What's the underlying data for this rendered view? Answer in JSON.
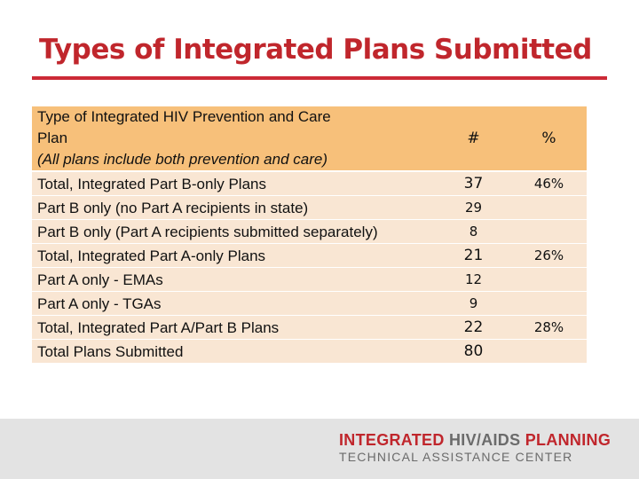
{
  "title": "Types of Integrated Plans Submitted",
  "table": {
    "header": {
      "type_line1": "Type of Integrated HIV Prevention and Care",
      "type_line2": "Plan",
      "type_line3": "(All plans include both prevention and care)",
      "count": "#",
      "percent": "%"
    },
    "rows": [
      {
        "label": "Total, Integrated Part B-only Plans",
        "count": "37",
        "percent": "46%"
      },
      {
        "label": "Part B only (no Part A recipients in state)",
        "count": "29",
        "percent": ""
      },
      {
        "label": "Part B only (Part A recipients submitted separately)",
        "count": "8",
        "percent": ""
      },
      {
        "label": "Total, Integrated Part A-only Plans",
        "count": "21",
        "percent": "26%"
      },
      {
        "label": "Part A only - EMAs",
        "count": "12",
        "percent": ""
      },
      {
        "label": "Part A only - TGAs",
        "count": "9",
        "percent": ""
      },
      {
        "label": "Total, Integrated Part A/Part B Plans",
        "count": "22",
        "percent": "28%"
      },
      {
        "label": "Total Plans Submitted",
        "count": "80",
        "percent": ""
      }
    ]
  },
  "footer": {
    "logo_word1": "INTEGRATED",
    "logo_word2": "HIV/AIDS",
    "logo_word3": "PLANNING",
    "logo_subtitle": "TECHNICAL ASSISTANCE CENTER"
  },
  "colors": {
    "title": "#c0262c",
    "rule": "#cc2a36",
    "header_bg": "#f7c07a",
    "row_bg": "#f9e6d3",
    "footer_bg": "#e3e3e3"
  }
}
